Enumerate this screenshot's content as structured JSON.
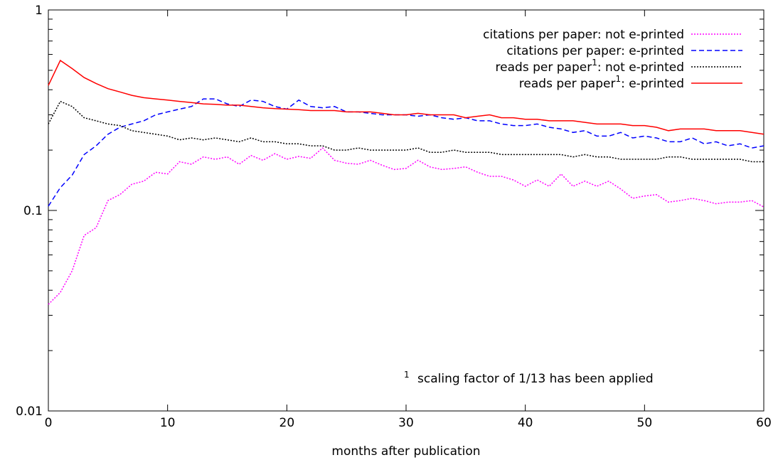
{
  "chart_data": {
    "type": "line",
    "title": "",
    "xlabel": "months after publication",
    "ylabel": "",
    "xlim": [
      0,
      60
    ],
    "ylim": [
      0.01,
      1
    ],
    "yscale": "log",
    "grid": false,
    "legend_position": "top-right",
    "x_ticks": [
      "0",
      "10",
      "20",
      "30",
      "40",
      "50",
      "60"
    ],
    "y_ticks": [
      "0.01",
      "0.1",
      "1"
    ],
    "note": {
      "sup": "1",
      "text": "scaling factor of 1/13 has been applied"
    },
    "series": [
      {
        "name": "citations per paper: not e-printed",
        "legend_parts": [
          "citations per paper: not e-printed"
        ],
        "color": "#ff00ff",
        "dash": "2,2",
        "x": [
          0,
          1,
          2,
          3,
          4,
          5,
          6,
          7,
          8,
          9,
          10,
          11,
          12,
          13,
          14,
          15,
          16,
          17,
          18,
          19,
          20,
          21,
          22,
          23,
          24,
          25,
          26,
          27,
          28,
          29,
          30,
          31,
          32,
          33,
          34,
          35,
          36,
          37,
          38,
          39,
          40,
          41,
          42,
          43,
          44,
          45,
          46,
          47,
          48,
          49,
          50,
          51,
          52,
          53,
          54,
          55,
          56,
          57,
          58,
          59,
          60
        ],
        "y": [
          0.034,
          0.039,
          0.05,
          0.075,
          0.082,
          0.112,
          0.12,
          0.135,
          0.14,
          0.155,
          0.152,
          0.175,
          0.17,
          0.185,
          0.18,
          0.185,
          0.17,
          0.188,
          0.178,
          0.192,
          0.18,
          0.186,
          0.182,
          0.205,
          0.178,
          0.172,
          0.17,
          0.178,
          0.168,
          0.16,
          0.162,
          0.178,
          0.165,
          0.16,
          0.162,
          0.165,
          0.155,
          0.148,
          0.148,
          0.142,
          0.132,
          0.142,
          0.132,
          0.152,
          0.132,
          0.14,
          0.132,
          0.14,
          0.128,
          0.115,
          0.118,
          0.12,
          0.11,
          0.112,
          0.115,
          0.112,
          0.108,
          0.11,
          0.11,
          0.112,
          0.104
        ]
      },
      {
        "name": "citations per paper: e-printed",
        "legend_parts": [
          "citations per paper: e-printed"
        ],
        "color": "#0000ff",
        "dash": "7,4",
        "x": [
          0,
          1,
          2,
          3,
          4,
          5,
          6,
          7,
          8,
          9,
          10,
          11,
          12,
          13,
          14,
          15,
          16,
          17,
          18,
          19,
          20,
          21,
          22,
          23,
          24,
          25,
          26,
          27,
          28,
          29,
          30,
          31,
          32,
          33,
          34,
          35,
          36,
          37,
          38,
          39,
          40,
          41,
          42,
          43,
          44,
          45,
          46,
          47,
          48,
          49,
          50,
          51,
          52,
          53,
          54,
          55,
          56,
          57,
          58,
          59,
          60
        ],
        "y": [
          0.105,
          0.13,
          0.15,
          0.19,
          0.21,
          0.24,
          0.26,
          0.27,
          0.28,
          0.3,
          0.31,
          0.32,
          0.33,
          0.36,
          0.36,
          0.34,
          0.33,
          0.355,
          0.35,
          0.33,
          0.32,
          0.355,
          0.33,
          0.325,
          0.33,
          0.31,
          0.31,
          0.305,
          0.3,
          0.3,
          0.3,
          0.295,
          0.3,
          0.29,
          0.285,
          0.29,
          0.28,
          0.28,
          0.27,
          0.265,
          0.265,
          0.27,
          0.26,
          0.255,
          0.245,
          0.25,
          0.235,
          0.235,
          0.245,
          0.23,
          0.235,
          0.23,
          0.22,
          0.22,
          0.23,
          0.215,
          0.22,
          0.21,
          0.215,
          0.205,
          0.21
        ]
      },
      {
        "name": "reads per paper1: not e-printed",
        "legend_parts": [
          "reads per paper",
          "1",
          ": not e-printed"
        ],
        "color": "#000000",
        "dash": "2,2",
        "x": [
          0,
          1,
          2,
          3,
          4,
          5,
          6,
          7,
          8,
          9,
          10,
          11,
          12,
          13,
          14,
          15,
          16,
          17,
          18,
          19,
          20,
          21,
          22,
          23,
          24,
          25,
          26,
          27,
          28,
          29,
          30,
          31,
          32,
          33,
          34,
          35,
          36,
          37,
          38,
          39,
          40,
          41,
          42,
          43,
          44,
          45,
          46,
          47,
          48,
          49,
          50,
          51,
          52,
          53,
          54,
          55,
          56,
          57,
          58,
          59,
          60
        ],
        "y": [
          0.27,
          0.35,
          0.33,
          0.29,
          0.28,
          0.27,
          0.265,
          0.25,
          0.245,
          0.24,
          0.235,
          0.225,
          0.23,
          0.225,
          0.23,
          0.225,
          0.22,
          0.23,
          0.22,
          0.22,
          0.215,
          0.215,
          0.21,
          0.21,
          0.2,
          0.2,
          0.205,
          0.2,
          0.2,
          0.2,
          0.2,
          0.205,
          0.195,
          0.195,
          0.2,
          0.195,
          0.195,
          0.195,
          0.19,
          0.19,
          0.19,
          0.19,
          0.19,
          0.19,
          0.185,
          0.19,
          0.185,
          0.185,
          0.18,
          0.18,
          0.18,
          0.18,
          0.185,
          0.185,
          0.18,
          0.18,
          0.18,
          0.18,
          0.18,
          0.175,
          0.175
        ]
      },
      {
        "name": "reads per paper1: e-printed",
        "legend_parts": [
          "reads per paper",
          "1",
          ": e-printed"
        ],
        "color": "#ff0000",
        "dash": "",
        "x": [
          0,
          1,
          2,
          3,
          4,
          5,
          6,
          7,
          8,
          9,
          10,
          11,
          12,
          13,
          14,
          15,
          16,
          17,
          18,
          19,
          20,
          21,
          22,
          23,
          24,
          25,
          26,
          27,
          28,
          29,
          30,
          31,
          32,
          33,
          34,
          35,
          36,
          37,
          38,
          39,
          40,
          41,
          42,
          43,
          44,
          45,
          46,
          47,
          48,
          49,
          50,
          51,
          52,
          53,
          54,
          55,
          56,
          57,
          58,
          59,
          60
        ],
        "y": [
          0.42,
          0.56,
          0.51,
          0.46,
          0.43,
          0.405,
          0.39,
          0.375,
          0.365,
          0.36,
          0.355,
          0.35,
          0.345,
          0.34,
          0.338,
          0.335,
          0.335,
          0.33,
          0.325,
          0.322,
          0.32,
          0.318,
          0.315,
          0.315,
          0.315,
          0.31,
          0.31,
          0.31,
          0.305,
          0.3,
          0.3,
          0.305,
          0.3,
          0.3,
          0.3,
          0.29,
          0.295,
          0.3,
          0.29,
          0.29,
          0.285,
          0.285,
          0.28,
          0.28,
          0.28,
          0.275,
          0.27,
          0.27,
          0.27,
          0.265,
          0.265,
          0.26,
          0.25,
          0.255,
          0.255,
          0.255,
          0.25,
          0.25,
          0.25,
          0.245,
          0.24
        ]
      }
    ]
  }
}
